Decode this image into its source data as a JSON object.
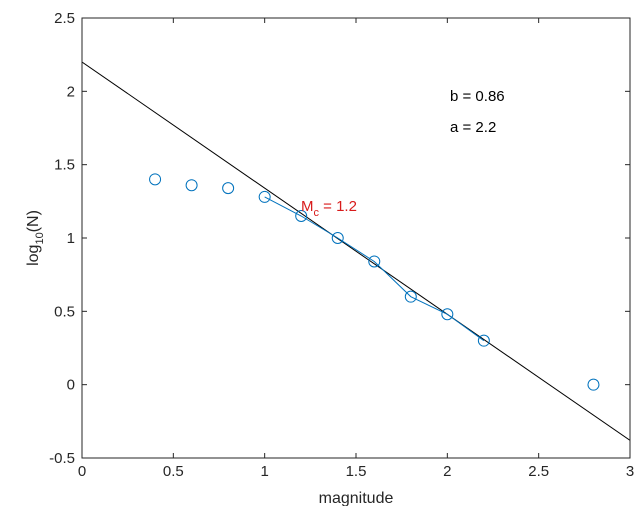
{
  "chart_data": {
    "type": "scatter",
    "title": "",
    "xlabel": "magnitude",
    "ylabel_base": "log",
    "ylabel_sub": "10",
    "ylabel_tail": "(N)",
    "xlim": [
      0,
      3
    ],
    "ylim": [
      -0.5,
      2.5
    ],
    "x_ticks": [
      0,
      0.5,
      1,
      1.5,
      2,
      2.5,
      3
    ],
    "x_tick_labels": [
      "0",
      "0.5",
      "1",
      "1.5",
      "2",
      "2.5",
      "3"
    ],
    "y_ticks": [
      -0.5,
      0,
      0.5,
      1,
      1.5,
      2,
      2.5
    ],
    "y_tick_labels": [
      "-0.5",
      "0",
      "0.5",
      "1",
      "1.5",
      "2",
      "2.5"
    ],
    "grid": false,
    "legend": "none",
    "series": [
      {
        "marker": "circle",
        "color": "#0072BD",
        "x": [
          0.4,
          0.6,
          0.8,
          1.0,
          1.2,
          1.4,
          1.6,
          1.8,
          2.0,
          2.2,
          2.8
        ],
        "y": [
          1.4,
          1.36,
          1.34,
          1.28,
          1.15,
          1.0,
          0.84,
          0.6,
          0.48,
          0.3,
          0.0
        ]
      },
      {
        "style": "line",
        "color": "#0072BD",
        "x": [
          1.0,
          1.2,
          1.4,
          1.6,
          1.8,
          2.0,
          2.2
        ],
        "y": [
          1.28,
          1.15,
          1.0,
          0.84,
          0.6,
          0.48,
          0.3
        ]
      },
      {
        "style": "line",
        "color": "#000000",
        "x": [
          0,
          3
        ],
        "y": [
          2.2,
          -0.38
        ]
      }
    ],
    "annotations": {
      "b_text": "b = 0.86",
      "a_text": "a = 2.2",
      "mc_base": "M",
      "mc_sub": "c",
      "mc_tail": " = 1.2",
      "mc_color": "#D81B1B"
    }
  }
}
